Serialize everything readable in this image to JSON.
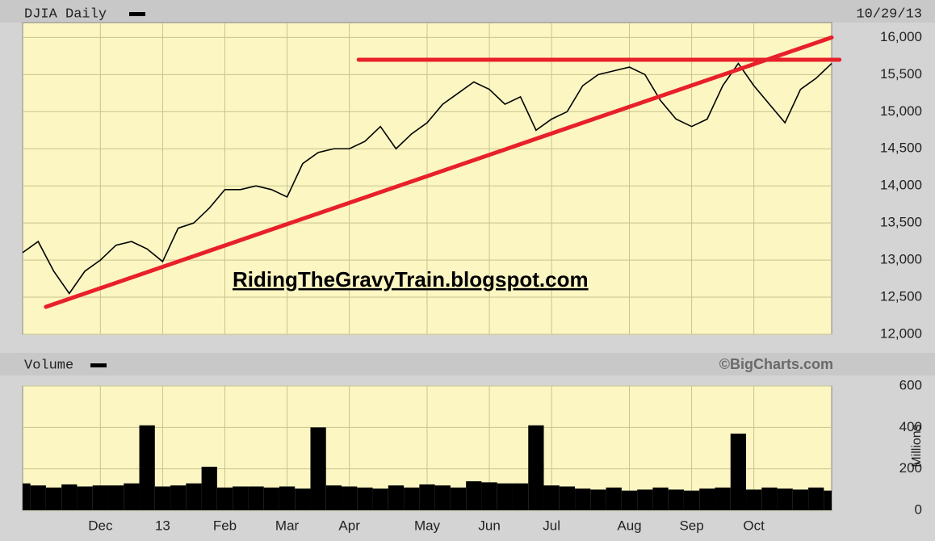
{
  "chart_data": [
    {
      "type": "line",
      "title": "DJIA Daily",
      "date": "10/29/13",
      "annotation": "RidingTheGravyTrain.blogspot.com",
      "categories": [
        null,
        null,
        null,
        null,
        null,
        "Dec",
        null,
        null,
        null,
        "13",
        null,
        null,
        null,
        "Feb",
        null,
        null,
        null,
        "Mar",
        null,
        null,
        null,
        "Apr",
        null,
        null,
        null,
        null,
        "May",
        null,
        null,
        null,
        "Jun",
        null,
        null,
        null,
        "Jul",
        null,
        null,
        null,
        null,
        "Aug",
        null,
        null,
        null,
        "Sep",
        null,
        null,
        null,
        "Oct",
        null,
        null,
        null,
        null,
        null
      ],
      "values": [
        13100,
        13250,
        12850,
        12550,
        12850,
        13000,
        13200,
        13250,
        13150,
        12980,
        13430,
        13500,
        13700,
        13950,
        13950,
        14000,
        13950,
        13850,
        14300,
        14450,
        14500,
        14500,
        14600,
        14800,
        14500,
        14700,
        14850,
        15100,
        15250,
        15400,
        15300,
        15100,
        15200,
        14750,
        14900,
        15000,
        15350,
        15500,
        15550,
        15600,
        15500,
        15150,
        14900,
        14800,
        14900,
        15350,
        15650,
        15350,
        15100,
        14850,
        15300,
        15450,
        15650
      ],
      "color": "#000000",
      "ylim": [
        12000,
        16200
      ],
      "yticks": [
        {
          "value": 12000,
          "label": "12,000"
        },
        {
          "value": 12500,
          "label": "12,500"
        },
        {
          "value": 13000,
          "label": "13,000"
        },
        {
          "value": 13500,
          "label": "13,500"
        },
        {
          "value": 14000,
          "label": "14,000"
        },
        {
          "value": 14500,
          "label": "14,500"
        },
        {
          "value": 15000,
          "label": "15,000"
        },
        {
          "value": 15500,
          "label": "15,500"
        },
        {
          "value": 16000,
          "label": "16,000"
        }
      ],
      "grid": true,
      "trend_lines": [
        {
          "color": "#e8202a",
          "from": [
            1.5,
            12370
          ],
          "to": [
            52,
            16000
          ]
        },
        {
          "color": "#e8202a",
          "from": [
            21.6,
            15700
          ],
          "to": [
            52.5,
            15700
          ]
        }
      ]
    },
    {
      "type": "bar",
      "title": "Volume",
      "credit": "©BigCharts.com",
      "ylabel": "Millions",
      "categories": [
        null,
        null,
        null,
        null,
        null,
        "Dec",
        null,
        null,
        null,
        "13",
        null,
        null,
        null,
        "Feb",
        null,
        null,
        null,
        "Mar",
        null,
        null,
        null,
        "Apr",
        null,
        null,
        null,
        null,
        "May",
        null,
        null,
        null,
        "Jun",
        null,
        null,
        null,
        "Jul",
        null,
        null,
        null,
        null,
        "Aug",
        null,
        null,
        null,
        "Sep",
        null,
        null,
        null,
        "Oct",
        null,
        null,
        null,
        null,
        null
      ],
      "values": [
        130,
        120,
        110,
        125,
        115,
        120,
        120,
        130,
        410,
        115,
        120,
        130,
        210,
        110,
        115,
        115,
        110,
        115,
        105,
        400,
        120,
        115,
        110,
        105,
        120,
        110,
        125,
        120,
        110,
        140,
        135,
        130,
        130,
        410,
        120,
        115,
        105,
        100,
        110,
        95,
        100,
        110,
        100,
        95,
        105,
        110,
        370,
        100,
        110,
        105,
        100,
        110,
        95
      ],
      "color": "#000000",
      "ylim": [
        0,
        600
      ],
      "yticks": [
        0,
        200,
        400,
        600
      ],
      "grid": true
    }
  ]
}
